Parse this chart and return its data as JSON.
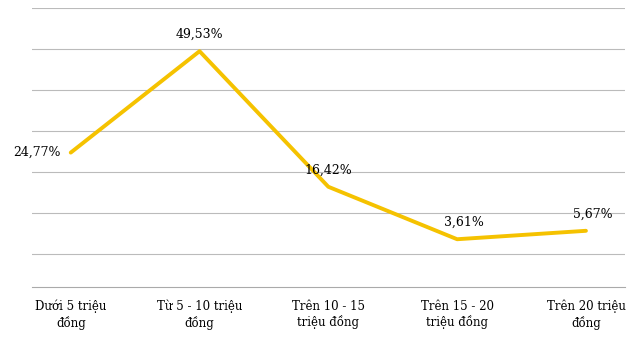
{
  "categories": [
    "Dưới 5 triệu\nđồng",
    "Từ 5 - 10 triệu\nđồng",
    "Trên 10 - 15\ntriệu đồng",
    "Trên 15 - 20\ntriệu đồng",
    "Trên 20 triệu\nđồng"
  ],
  "values": [
    24.77,
    49.53,
    16.42,
    3.61,
    5.67
  ],
  "labels": [
    "24,77%",
    "49,53%",
    "16,42%",
    "3,61%",
    "5,67%"
  ],
  "label_ha": [
    "right",
    "center",
    "center",
    "center",
    "center"
  ],
  "label_dx": [
    -0.08,
    0.0,
    0.0,
    0.05,
    0.05
  ],
  "label_dy": [
    0.0,
    2.5,
    2.5,
    2.5,
    2.5
  ],
  "label_va": [
    "center",
    "bottom",
    "bottom",
    "bottom",
    "bottom"
  ],
  "line_color": "#F5C200",
  "line_width": 2.8,
  "background_color": "#ffffff",
  "grid_color": "#bbbbbb",
  "label_fontsize": 9,
  "tick_fontsize": 8.5,
  "ylim": [
    -8,
    60
  ],
  "xlim": [
    -0.3,
    4.3
  ],
  "yticks": [
    0,
    10,
    20,
    30,
    40,
    50
  ]
}
